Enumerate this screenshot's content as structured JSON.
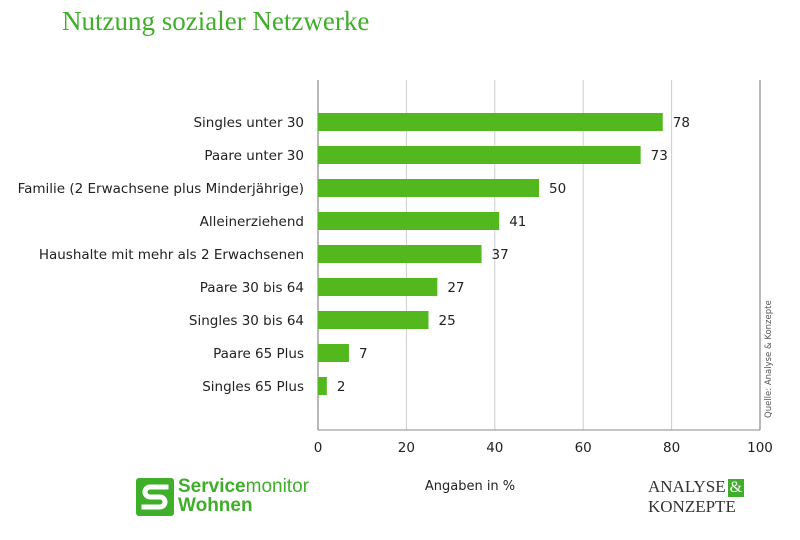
{
  "title": "Nutzung sozialer Netzwerke",
  "source_note": "Quelle: Analyse & Konzepte",
  "colors": {
    "bar": "#52b81e",
    "title": "#3fae2a",
    "grid": "#cccccc"
  },
  "logos": {
    "servicemonitor": {
      "part1": "Service",
      "part2": "monitor",
      "part3": "Wohnen"
    },
    "analyse_konzepte": {
      "line1": "ANALYSE",
      "amp": "&",
      "line2": "KONZEPTE"
    }
  },
  "chart_data": {
    "type": "bar",
    "orientation": "horizontal",
    "categories": [
      "Singles unter 30",
      "Paare unter 30",
      "Familie (2 Erwachsene plus Minderjährige)",
      "Alleinerziehend",
      "Haushalte mit mehr als 2 Erwachsenen",
      "Paare 30 bis 64",
      "Singles 30 bis 64",
      "Paare 65 Plus",
      "Singles 65 Plus"
    ],
    "values": [
      78,
      73,
      50,
      41,
      37,
      27,
      25,
      7,
      2
    ],
    "xlabel": "Angaben in %",
    "xlim": [
      0,
      100
    ],
    "xticks": [
      0,
      20,
      40,
      60,
      80,
      100
    ],
    "grid": true,
    "data_labels": true
  }
}
